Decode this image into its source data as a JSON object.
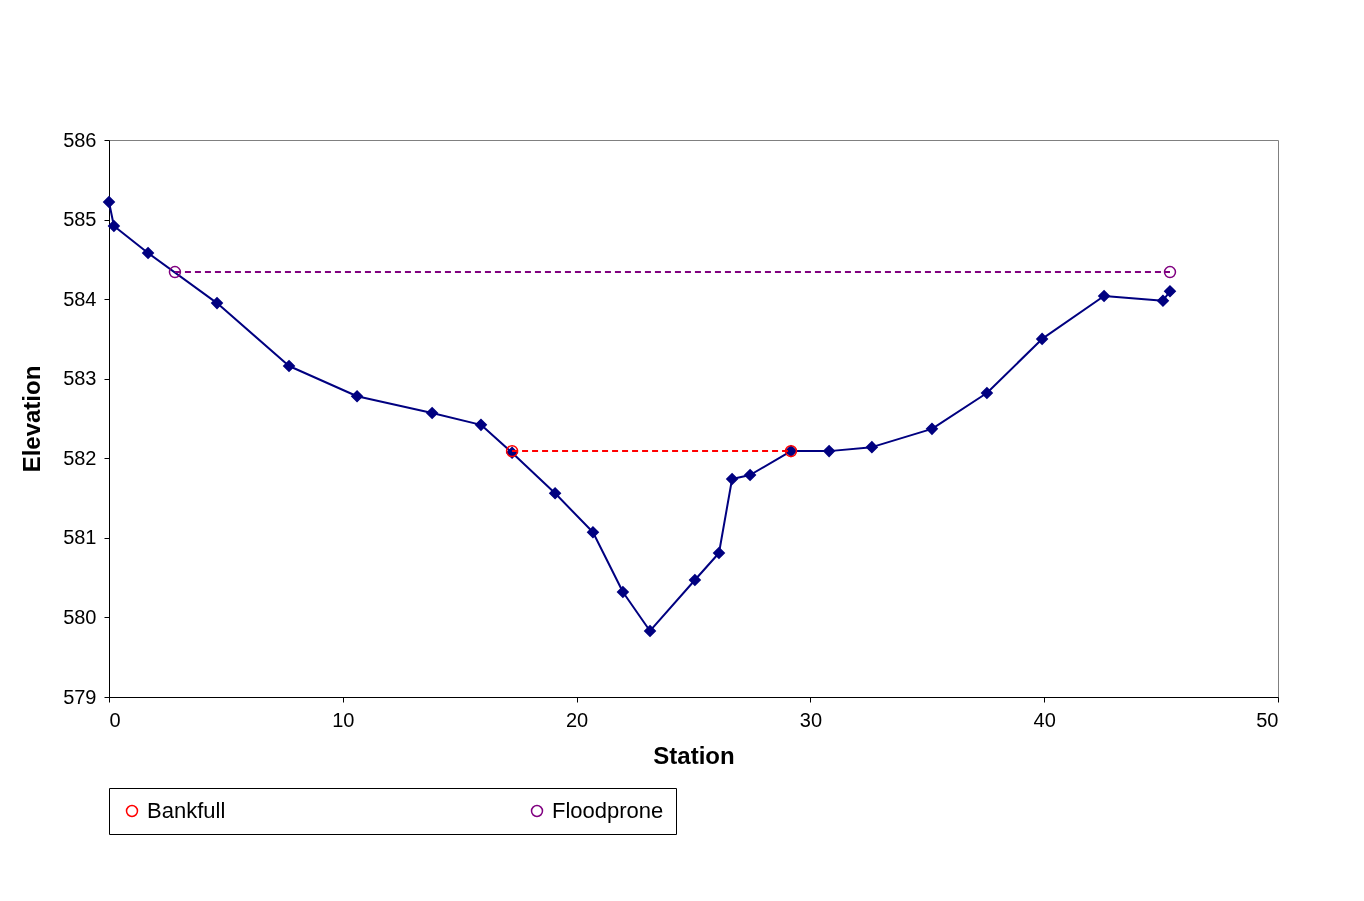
{
  "chart_data": {
    "type": "line",
    "xlabel": "Station",
    "ylabel": "Elevation",
    "xlim": [
      0,
      50
    ],
    "ylim": [
      579,
      586
    ],
    "xticks": [
      0,
      10,
      20,
      30,
      40,
      50
    ],
    "yticks": [
      579,
      580,
      581,
      582,
      583,
      584,
      585,
      586
    ],
    "grid": false,
    "legend": "bottom",
    "series": [
      {
        "color": "#000080",
        "marker": "diamond",
        "line_style": "solid",
        "x": [
          0,
          0.21,
          1.67,
          4.62,
          7.7,
          10.61,
          13.82,
          15.91,
          17.24,
          19.08,
          20.7,
          21.98,
          23.14,
          25.06,
          26.09,
          26.65,
          27.42,
          29.17,
          30.8,
          32.63,
          35.2,
          37.55,
          39.91,
          42.56,
          45.08,
          45.38
        ],
        "values": [
          585.22,
          584.92,
          584.58,
          583.95,
          583.16,
          582.78,
          582.57,
          582.42,
          582.07,
          581.56,
          581.07,
          580.32,
          579.83,
          580.47,
          580.81,
          581.74,
          581.79,
          582.09,
          582.09,
          582.14,
          582.37,
          582.82,
          583.5,
          584.04,
          583.98,
          584.1
        ]
      },
      {
        "name": "Bankfull",
        "color": "#ff0000",
        "marker": "circle",
        "line_style": "dashed",
        "x": [
          17.24,
          29.17
        ],
        "values": [
          582.09,
          582.09
        ]
      },
      {
        "name": "Floodprone",
        "color": "#800080",
        "marker": "circle",
        "line_style": "dashed",
        "x": [
          2.82,
          45.38
        ],
        "values": [
          584.34,
          584.34
        ]
      }
    ]
  }
}
